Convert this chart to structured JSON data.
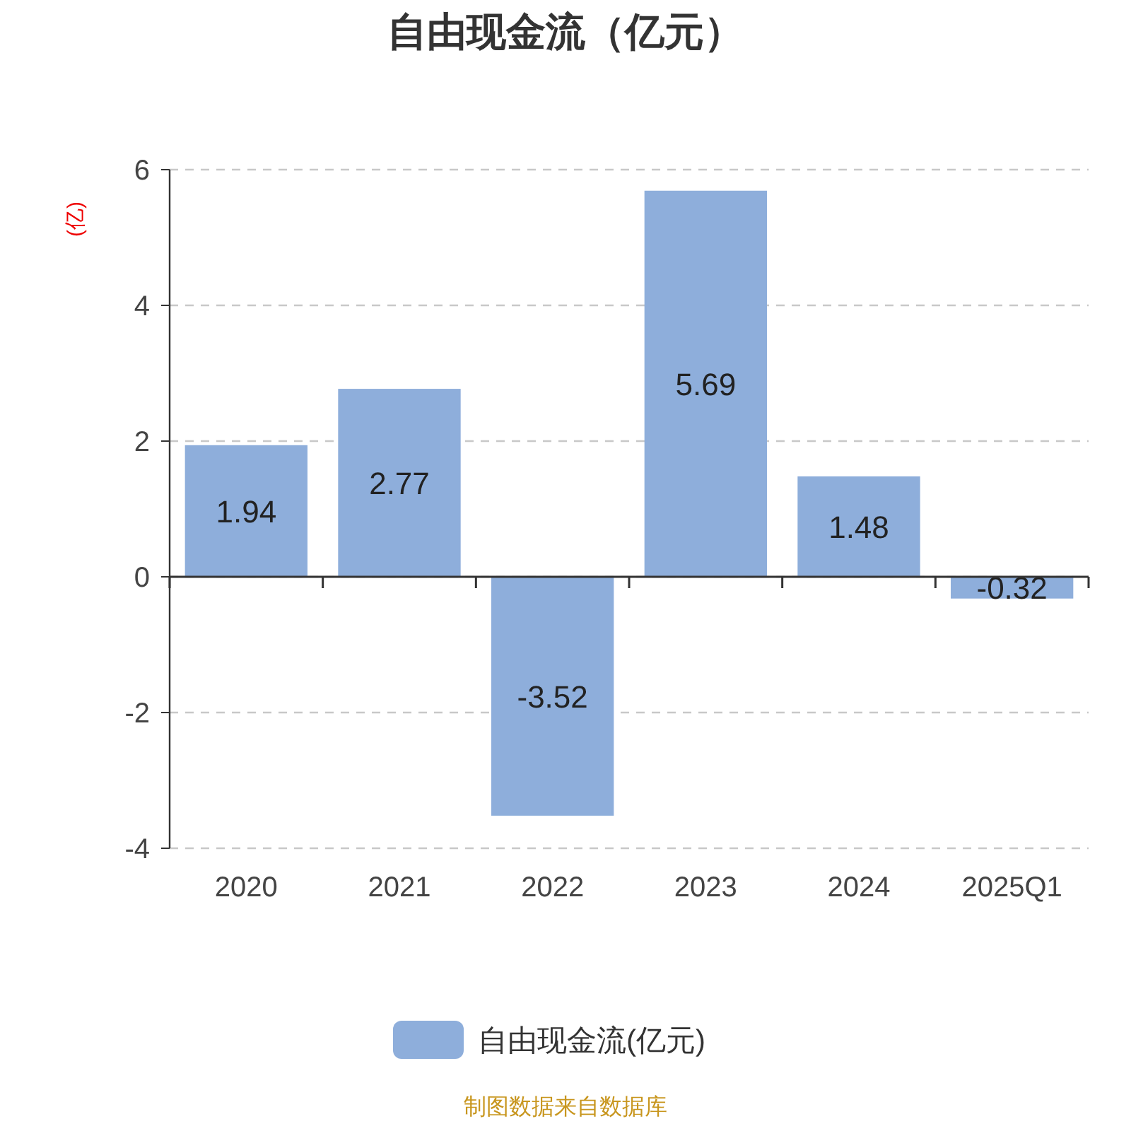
{
  "chart_data": {
    "type": "bar",
    "title": "自由现金流（亿元）",
    "ylabel": "(亿)",
    "categories": [
      "2020",
      "2021",
      "2022",
      "2023",
      "2024",
      "2025Q1"
    ],
    "series": [
      {
        "name": "自由现金流(亿元)",
        "color": "#8eaedb",
        "values": [
          1.94,
          2.77,
          -3.52,
          5.69,
          1.48,
          -0.32
        ]
      }
    ],
    "ylim": [
      -4,
      6
    ],
    "yticks": [
      -4,
      -2,
      0,
      2,
      4,
      6
    ],
    "grid": "y",
    "legend": "bottom",
    "data_labels": true,
    "annotations": [
      "制图数据来自数据库"
    ]
  }
}
